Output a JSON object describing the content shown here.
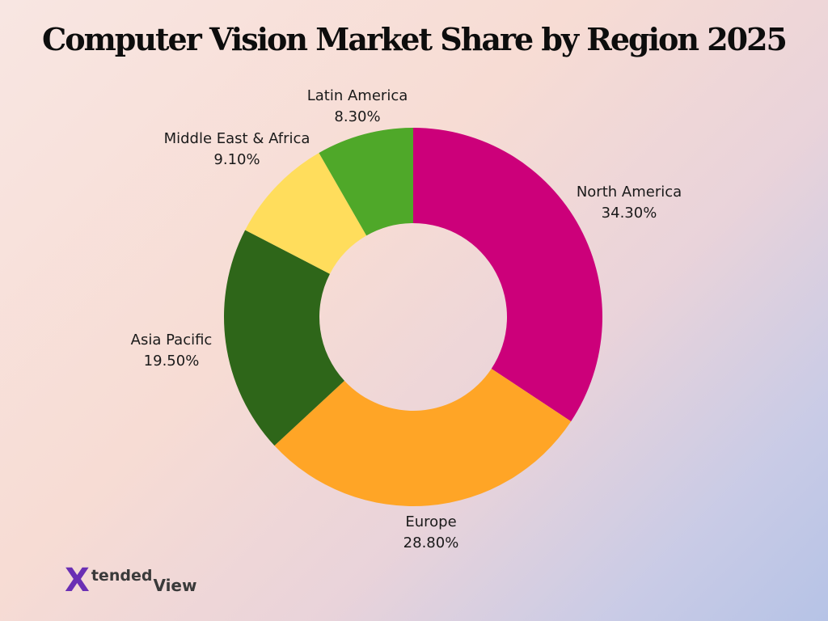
{
  "chart_data": {
    "type": "pie",
    "title": "Computer Vision Market Share by Region 2025",
    "categories": [
      "North America",
      "Europe",
      "Asia Pacific",
      "Middle East & Africa",
      "Latin America"
    ],
    "values": [
      34.3,
      28.8,
      19.5,
      9.1,
      8.3
    ],
    "value_labels": [
      "34.30%",
      "28.80%",
      "19.50%",
      "9.10%",
      "8.30%"
    ],
    "colors": [
      "#cc007a",
      "#ffa526",
      "#2e6619",
      "#ffdd5c",
      "#4fa829"
    ],
    "donut": true
  },
  "brand": {
    "logo_mark": "X",
    "logo_text_top": "tended",
    "logo_text_bottom": "View",
    "logo_colors": [
      "#6a2fb4",
      "#f5c400"
    ]
  }
}
